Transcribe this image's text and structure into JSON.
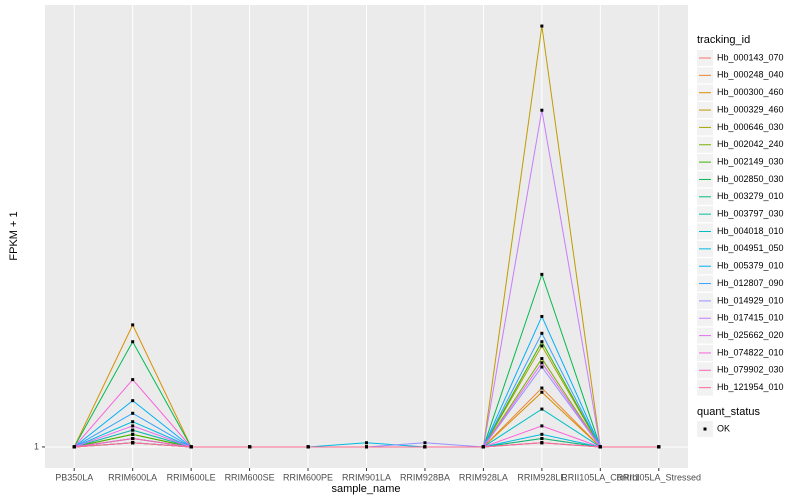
{
  "chart_data": {
    "type": "line",
    "x_label": "sample_name",
    "y_label": "FPKM + 1",
    "categories": [
      "PB350LA",
      "RRIM600LA",
      "RRIM600LE",
      "RRIM600SE",
      "RRIM600PE",
      "RRIM901LA",
      "RRIM928BA",
      "RRIM928LA",
      "RRIM928LE",
      "RRII105LA_Control",
      "RRII105LA_Stressed"
    ],
    "ylim": [
      -4,
      106
    ],
    "yticks": [
      1
    ],
    "grid": true,
    "legend_title": "tracking_id",
    "shape_legend": {
      "title": "quant_status",
      "labels": [
        "OK"
      ],
      "color": "#000000"
    },
    "point_color": "#000000",
    "series": [
      {
        "name": "Hb_000143_070",
        "color": "#F8766D",
        "values": [
          1,
          2,
          1,
          1,
          1,
          1,
          1,
          1,
          3,
          1,
          1
        ]
      },
      {
        "name": "Hb_000248_040",
        "color": "#EA8331",
        "values": [
          1,
          5,
          1,
          1,
          1,
          1,
          1,
          1,
          15,
          1,
          1
        ]
      },
      {
        "name": "Hb_000300_460",
        "color": "#D89000",
        "values": [
          1,
          30,
          1,
          1,
          1,
          1,
          1,
          1,
          14,
          1,
          1
        ]
      },
      {
        "name": "Hb_000329_460",
        "color": "#C09B00",
        "values": [
          1,
          4,
          1,
          1,
          1,
          1,
          1,
          1,
          101,
          1,
          1
        ]
      },
      {
        "name": "Hb_000646_030",
        "color": "#A3A500",
        "values": [
          1,
          3,
          1,
          1,
          1,
          1,
          1,
          1,
          25,
          1,
          1
        ]
      },
      {
        "name": "Hb_002042_240",
        "color": "#7CAE00",
        "values": [
          1,
          2,
          1,
          1,
          1,
          1,
          1,
          1,
          22,
          1,
          1
        ]
      },
      {
        "name": "Hb_002149_030",
        "color": "#39B600",
        "values": [
          1,
          4,
          1,
          1,
          1,
          1,
          1,
          1,
          26,
          1,
          1
        ]
      },
      {
        "name": "Hb_002850_030",
        "color": "#00BB4E",
        "values": [
          1,
          26,
          1,
          1,
          1,
          1,
          1,
          1,
          42,
          1,
          1
        ]
      },
      {
        "name": "Hb_003279_010",
        "color": "#00BF7D",
        "values": [
          1,
          3,
          1,
          1,
          1,
          1,
          1,
          1,
          3,
          1,
          1
        ]
      },
      {
        "name": "Hb_003797_030",
        "color": "#00C1A3",
        "values": [
          1,
          2,
          1,
          1,
          1,
          1,
          1,
          1,
          2,
          1,
          1
        ]
      },
      {
        "name": "Hb_004018_010",
        "color": "#00BFC4",
        "values": [
          1,
          5,
          1,
          1,
          1,
          1,
          1,
          1,
          10,
          1,
          1
        ]
      },
      {
        "name": "Hb_004951_050",
        "color": "#00BAE0",
        "values": [
          1,
          7,
          1,
          1,
          1,
          2,
          1,
          1,
          4,
          1,
          1
        ]
      },
      {
        "name": "Hb_005379_010",
        "color": "#00B0F6",
        "values": [
          1,
          12,
          1,
          1,
          1,
          1,
          1,
          1,
          32,
          1,
          1
        ]
      },
      {
        "name": "Hb_012807_090",
        "color": "#35A2FF",
        "values": [
          1,
          9,
          1,
          1,
          1,
          1,
          1,
          1,
          28,
          1,
          1
        ]
      },
      {
        "name": "Hb_014929_010",
        "color": "#9590FF",
        "values": [
          1,
          3,
          1,
          1,
          1,
          1,
          2,
          1,
          20,
          1,
          1
        ]
      },
      {
        "name": "Hb_017415_010",
        "color": "#C77CFF",
        "values": [
          1,
          2,
          1,
          1,
          1,
          1,
          1,
          1,
          81,
          1,
          1
        ]
      },
      {
        "name": "Hb_025662_020",
        "color": "#E76BF3",
        "values": [
          1,
          6,
          1,
          1,
          1,
          1,
          1,
          1,
          21,
          1,
          1
        ]
      },
      {
        "name": "Hb_074822_010",
        "color": "#FA62DB",
        "values": [
          1,
          17,
          1,
          1,
          1,
          1,
          1,
          1,
          6,
          1,
          1
        ]
      },
      {
        "name": "Hb_079902_030",
        "color": "#FF62BC",
        "values": [
          1,
          3,
          1,
          1,
          1,
          1,
          1,
          1,
          2,
          1,
          1
        ]
      },
      {
        "name": "Hb_121954_010",
        "color": "#FF6C91",
        "values": [
          1,
          2,
          1,
          1,
          1,
          1,
          1,
          1,
          2,
          1,
          1
        ]
      }
    ]
  }
}
